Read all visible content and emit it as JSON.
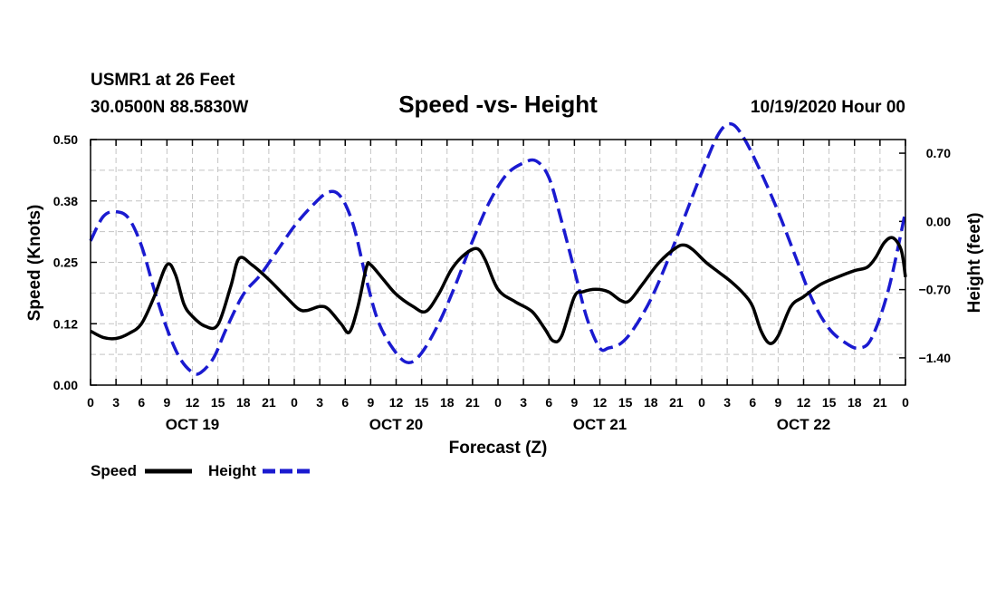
{
  "chart_data": {
    "type": "line",
    "station_title": "USMR1 at 26 Feet",
    "station_coords": "30.0500N 88.5830W",
    "title": "Speed -vs- Height",
    "issued": "10/19/2020 Hour 00",
    "xlabel": "Forecast (Z)",
    "ylabel_left": "Speed (Knots)",
    "ylabel_right": "Height (feet)",
    "x_range_hours": [
      0,
      96
    ],
    "x_tick_step_hours": 3,
    "x_tick_labels": [
      "0",
      "3",
      "6",
      "9",
      "12",
      "15",
      "18",
      "21",
      "0",
      "3",
      "6",
      "9",
      "12",
      "15",
      "18",
      "21",
      "0",
      "3",
      "6",
      "9",
      "12",
      "15",
      "18",
      "21",
      "0",
      "3",
      "6",
      "9",
      "12",
      "15",
      "18",
      "21",
      "0"
    ],
    "date_labels": [
      {
        "hour": 12,
        "label": "OCT 19"
      },
      {
        "hour": 36,
        "label": "OCT 20"
      },
      {
        "hour": 60,
        "label": "OCT 21"
      },
      {
        "hour": 84,
        "label": "OCT 22"
      }
    ],
    "y_left": {
      "range": [
        0,
        0.5
      ],
      "ticks": [
        0.0,
        0.125,
        0.25,
        0.375,
        0.5
      ],
      "tick_labels": [
        "0.00",
        "0.12",
        "0.25",
        "0.38",
        "0.50"
      ]
    },
    "y_right": {
      "range": [
        -1.68,
        0.84
      ],
      "ticks": [
        0.7,
        0.0,
        -0.7,
        -1.4
      ],
      "tick_labels": [
        "0.70",
        "0.00",
        "-0.70",
        "-1.40"
      ]
    },
    "grid": true,
    "series": [
      {
        "name": "Speed",
        "axis": "left",
        "color": "#000000",
        "style": "solid",
        "points": [
          [
            0,
            0.11
          ],
          [
            1.5,
            0.097
          ],
          [
            3,
            0.095
          ],
          [
            4.5,
            0.105
          ],
          [
            6,
            0.125
          ],
          [
            7.5,
            0.18
          ],
          [
            9,
            0.245
          ],
          [
            10,
            0.225
          ],
          [
            11,
            0.165
          ],
          [
            12,
            0.14
          ],
          [
            13.5,
            0.12
          ],
          [
            15,
            0.123
          ],
          [
            16.5,
            0.2
          ],
          [
            17.5,
            0.258
          ],
          [
            19,
            0.245
          ],
          [
            21,
            0.215
          ],
          [
            23,
            0.18
          ],
          [
            24.5,
            0.155
          ],
          [
            25.5,
            0.152
          ],
          [
            27,
            0.16
          ],
          [
            28,
            0.155
          ],
          [
            29.5,
            0.125
          ],
          [
            30.5,
            0.108
          ],
          [
            31.5,
            0.16
          ],
          [
            32.5,
            0.24
          ],
          [
            33,
            0.245
          ],
          [
            34.5,
            0.215
          ],
          [
            36,
            0.185
          ],
          [
            38,
            0.16
          ],
          [
            39.5,
            0.15
          ],
          [
            41,
            0.185
          ],
          [
            42.5,
            0.235
          ],
          [
            44,
            0.265
          ],
          [
            45.5,
            0.278
          ],
          [
            46.5,
            0.255
          ],
          [
            48,
            0.195
          ],
          [
            50,
            0.17
          ],
          [
            52,
            0.15
          ],
          [
            53.5,
            0.115
          ],
          [
            54.5,
            0.09
          ],
          [
            55.5,
            0.1
          ],
          [
            57,
            0.18
          ],
          [
            58,
            0.19
          ],
          [
            59.5,
            0.195
          ],
          [
            61,
            0.19
          ],
          [
            62.5,
            0.172
          ],
          [
            63.5,
            0.172
          ],
          [
            65,
            0.205
          ],
          [
            67,
            0.25
          ],
          [
            69,
            0.28
          ],
          [
            70,
            0.285
          ],
          [
            71,
            0.275
          ],
          [
            72.5,
            0.25
          ],
          [
            74,
            0.23
          ],
          [
            75.5,
            0.21
          ],
          [
            77,
            0.185
          ],
          [
            78,
            0.16
          ],
          [
            79,
            0.11
          ],
          [
            80,
            0.085
          ],
          [
            81,
            0.1
          ],
          [
            82.5,
            0.16
          ],
          [
            84,
            0.18
          ],
          [
            86,
            0.205
          ],
          [
            88,
            0.22
          ],
          [
            90,
            0.233
          ],
          [
            91.5,
            0.24
          ],
          [
            92.5,
            0.26
          ],
          [
            93.5,
            0.29
          ],
          [
            94.5,
            0.3
          ],
          [
            95.5,
            0.275
          ],
          [
            96,
            0.22
          ]
        ]
      },
      {
        "name": "Height",
        "axis": "right",
        "color": "#1a1ad0",
        "style": "dashed",
        "points": [
          [
            0,
            -0.2
          ],
          [
            1.5,
            0.05
          ],
          [
            3,
            0.1
          ],
          [
            4.5,
            0.03
          ],
          [
            6,
            -0.25
          ],
          [
            7.5,
            -0.7
          ],
          [
            9,
            -1.1
          ],
          [
            10.5,
            -1.4
          ],
          [
            12,
            -1.55
          ],
          [
            13,
            -1.55
          ],
          [
            14.5,
            -1.4
          ],
          [
            16,
            -1.1
          ],
          [
            18,
            -0.75
          ],
          [
            20,
            -0.55
          ],
          [
            22,
            -0.3
          ],
          [
            24,
            -0.05
          ],
          [
            26,
            0.15
          ],
          [
            28,
            0.3
          ],
          [
            29.5,
            0.25
          ],
          [
            31,
            -0.05
          ],
          [
            32.5,
            -0.6
          ],
          [
            34,
            -1.05
          ],
          [
            36,
            -1.35
          ],
          [
            37.5,
            -1.45
          ],
          [
            39,
            -1.35
          ],
          [
            41,
            -1.05
          ],
          [
            43,
            -0.65
          ],
          [
            45,
            -0.2
          ],
          [
            47,
            0.2
          ],
          [
            49,
            0.48
          ],
          [
            51,
            0.6
          ],
          [
            52.5,
            0.62
          ],
          [
            54,
            0.45
          ],
          [
            55.5,
            0.0
          ],
          [
            57,
            -0.5
          ],
          [
            58.5,
            -1.0
          ],
          [
            60,
            -1.3
          ],
          [
            61,
            -1.3
          ],
          [
            62.5,
            -1.25
          ],
          [
            64,
            -1.1
          ],
          [
            66,
            -0.8
          ],
          [
            68,
            -0.4
          ],
          [
            70,
            0.05
          ],
          [
            72,
            0.5
          ],
          [
            74,
            0.9
          ],
          [
            75.5,
            1.0
          ],
          [
            77,
            0.85
          ],
          [
            79,
            0.5
          ],
          [
            81,
            0.1
          ],
          [
            83,
            -0.35
          ],
          [
            85,
            -0.8
          ],
          [
            87,
            -1.1
          ],
          [
            89,
            -1.25
          ],
          [
            90.5,
            -1.3
          ],
          [
            92,
            -1.2
          ],
          [
            94,
            -0.7
          ],
          [
            96,
            0.1
          ]
        ]
      }
    ]
  },
  "legend": {
    "items": [
      {
        "label": "Speed",
        "color": "#000000",
        "style": "solid"
      },
      {
        "label": "Height",
        "color": "#1a1ad0",
        "style": "dashed"
      }
    ]
  }
}
